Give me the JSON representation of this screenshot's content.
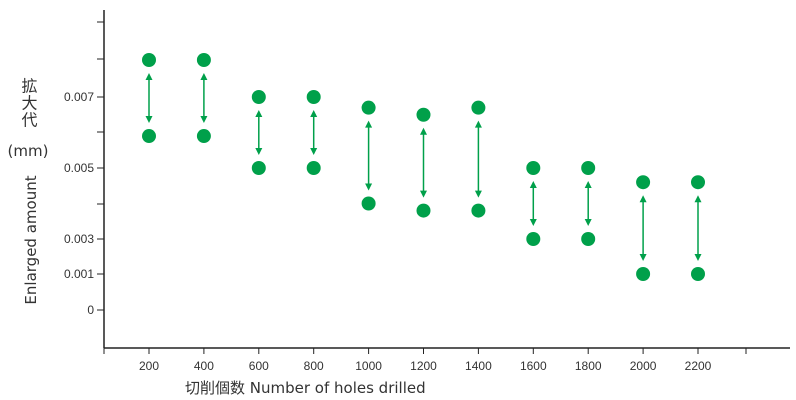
{
  "chart_data": {
    "type": "scatter",
    "categories": [
      "200",
      "400",
      "600",
      "800",
      "1000",
      "1200",
      "1400",
      "1600",
      "1800",
      "2000",
      "2200"
    ],
    "x": [
      200,
      400,
      600,
      800,
      1000,
      1200,
      1400,
      1600,
      1800,
      2000,
      2200
    ],
    "series": [
      {
        "values": [
          0.008,
          0.008,
          0.007,
          0.007,
          0.0067,
          0.0065,
          0.0067,
          0.005,
          0.005,
          0.0046,
          0.0046
        ]
      },
      {
        "values": [
          0.0059,
          0.0059,
          0.005,
          0.005,
          0.004,
          0.0038,
          0.0038,
          0.003,
          0.003,
          0.001,
          0.001
        ]
      }
    ],
    "yticks": [
      "0",
      "0.001",
      "0.003",
      "0.005",
      "0.007"
    ],
    "ylabel_jp": "拡大代",
    "ylabel_unit": "(mm)",
    "ylabel_en": "Enlarged amount",
    "xlabel": "切削個数 Number of holes drilled",
    "marker_color": "#00a04a",
    "arrow_color": "#00a04a",
    "axis_color": "#222222",
    "ranges_arrows": true
  }
}
